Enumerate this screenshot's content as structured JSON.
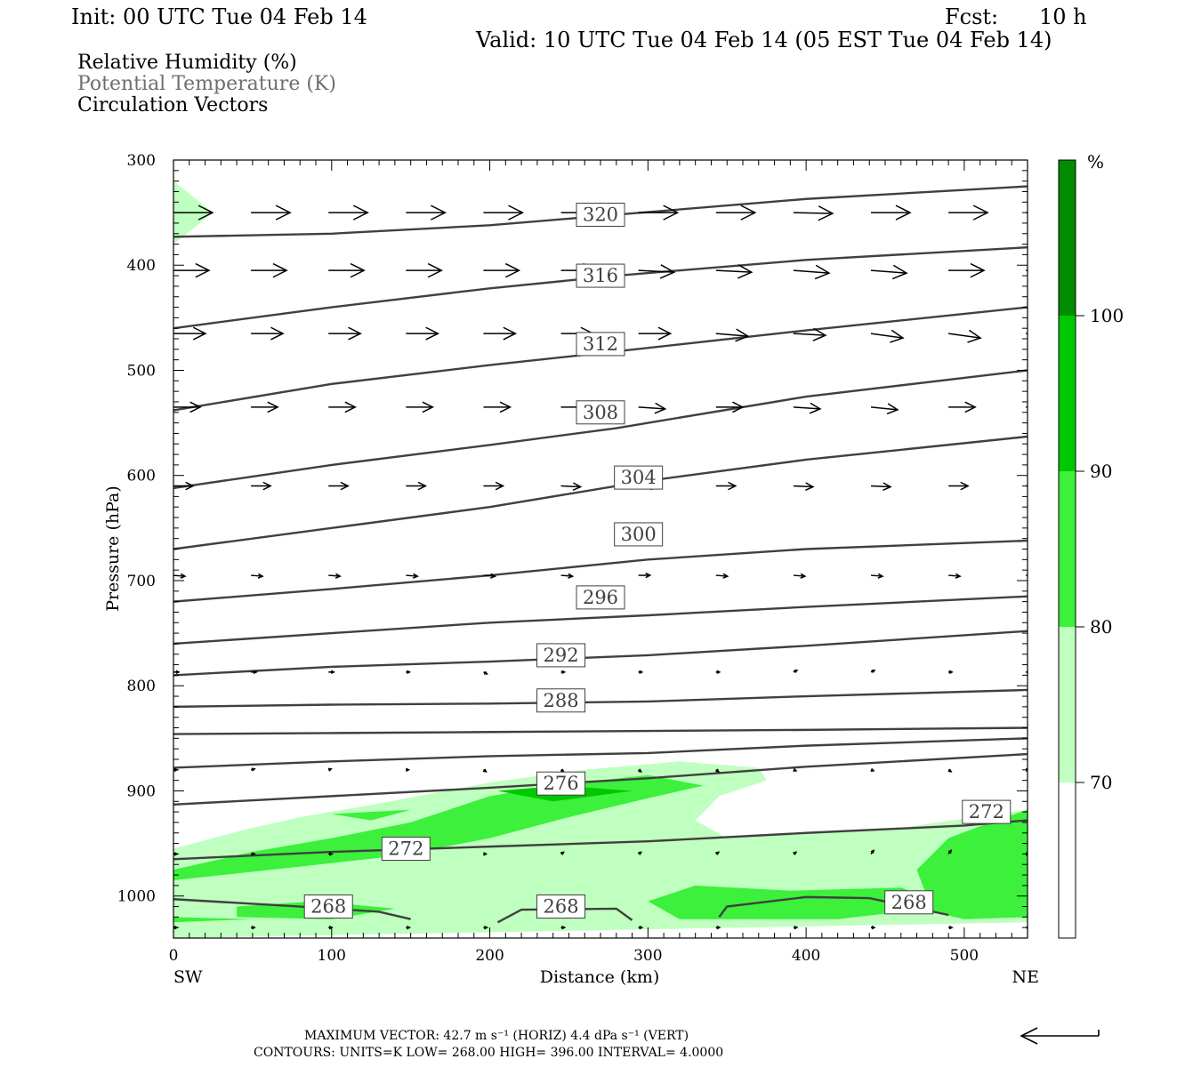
{
  "header": {
    "init": "Init: 00 UTC Tue 04 Feb 14",
    "fcst_label": "Fcst:",
    "fcst_value": "10 h",
    "valid": "Valid: 10 UTC Tue 04 Feb 14 (05 EST Tue 04 Feb 14)"
  },
  "legend": {
    "rh": "Relative Humidity (%)",
    "theta": "Potential Temperature (K)",
    "vectors": "Circulation Vectors"
  },
  "footer": {
    "max_vector": "MAXIMUM VECTOR:  42.7 m s⁻¹ (HORIZ)          4.4 dPa s⁻¹ (VERT)",
    "contours": "CONTOURS:  UNITS=K  LOW=   268.00        HIGH=   396.00        INTERVAL=     4.0000"
  },
  "colors": {
    "rh_70_80": "#bfffbf",
    "rh_80_90": "#3cf03c",
    "rh_90_100": "#00c800",
    "rh_100": "#008c00",
    "contour": "#404040"
  },
  "chart_data": {
    "type": "cross-section",
    "xlabel": "Distance (km)",
    "ylabel": "Pressure (hPa)",
    "xlim": [
      0,
      540
    ],
    "ylim": [
      1040,
      300
    ],
    "x_ticks": [
      "0",
      "100",
      "200",
      "300",
      "400",
      "500"
    ],
    "y_ticks": [
      "300",
      "400",
      "500",
      "600",
      "700",
      "800",
      "900",
      "1000"
    ],
    "x_ends": [
      "SW",
      "NE"
    ],
    "colorbar": {
      "unit": "%",
      "levels": [
        "100",
        "90",
        "80",
        "70"
      ],
      "colors": [
        "#008c00",
        "#00c800",
        "#3cf03c",
        "#bfffbf",
        "#ffffff"
      ]
    },
    "contours": [
      {
        "label": "320",
        "points": [
          [
            0,
            373
          ],
          [
            100,
            370
          ],
          [
            200,
            362
          ],
          [
            280,
            352
          ],
          [
            400,
            337
          ],
          [
            540,
            325
          ]
        ]
      },
      {
        "label": "316",
        "points": [
          [
            0,
            460
          ],
          [
            100,
            440
          ],
          [
            200,
            422
          ],
          [
            280,
            410
          ],
          [
            400,
            395
          ],
          [
            540,
            383
          ]
        ]
      },
      {
        "label": "312",
        "points": [
          [
            0,
            538
          ],
          [
            100,
            513
          ],
          [
            200,
            495
          ],
          [
            280,
            482
          ],
          [
            400,
            462
          ],
          [
            540,
            440
          ]
        ]
      },
      {
        "label": "308",
        "points": [
          [
            0,
            612
          ],
          [
            100,
            590
          ],
          [
            200,
            571
          ],
          [
            280,
            555
          ],
          [
            400,
            525
          ],
          [
            540,
            500
          ]
        ]
      },
      {
        "label": "304",
        "points": [
          [
            0,
            670
          ],
          [
            100,
            650
          ],
          [
            200,
            630
          ],
          [
            300,
            605
          ],
          [
            400,
            585
          ],
          [
            540,
            563
          ]
        ]
      },
      {
        "label": "300",
        "points": [
          [
            0,
            720
          ],
          [
            100,
            708
          ],
          [
            200,
            695
          ],
          [
            300,
            680
          ],
          [
            400,
            670
          ],
          [
            540,
            662
          ]
        ]
      },
      {
        "label": "296",
        "points": [
          [
            0,
            760
          ],
          [
            100,
            750
          ],
          [
            200,
            740
          ],
          [
            300,
            733
          ],
          [
            400,
            725
          ],
          [
            540,
            715
          ]
        ]
      },
      {
        "label": "292",
        "points": [
          [
            0,
            790
          ],
          [
            100,
            782
          ],
          [
            200,
            777
          ],
          [
            300,
            771
          ],
          [
            400,
            762
          ],
          [
            540,
            748
          ]
        ]
      },
      {
        "label": "288",
        "points": [
          [
            0,
            820
          ],
          [
            100,
            818
          ],
          [
            200,
            817
          ],
          [
            300,
            815
          ],
          [
            400,
            810
          ],
          [
            540,
            804
          ]
        ]
      },
      {
        "label": "",
        "points": [
          [
            0,
            846
          ],
          [
            100,
            845
          ],
          [
            200,
            844
          ],
          [
            300,
            843
          ],
          [
            400,
            842
          ],
          [
            540,
            840
          ]
        ]
      },
      {
        "label": "",
        "points": [
          [
            0,
            878
          ],
          [
            100,
            872
          ],
          [
            200,
            867
          ],
          [
            300,
            864
          ],
          [
            400,
            857
          ],
          [
            540,
            850
          ]
        ]
      },
      {
        "label": "276",
        "points": [
          [
            0,
            913
          ],
          [
            100,
            905
          ],
          [
            200,
            897
          ],
          [
            300,
            888
          ],
          [
            400,
            877
          ],
          [
            540,
            865
          ]
        ]
      },
      {
        "label": "272",
        "points": [
          [
            0,
            965
          ],
          [
            100,
            958
          ],
          [
            200,
            953
          ],
          [
            300,
            948
          ],
          [
            400,
            940
          ],
          [
            500,
            933
          ],
          [
            540,
            928
          ]
        ]
      },
      {
        "label": "268",
        "points": [
          [
            0,
            1003
          ],
          [
            80,
            1010
          ],
          [
            130,
            1015
          ],
          [
            150,
            1022
          ]
        ]
      },
      {
        "label": "268",
        "points": [
          [
            205,
            1025
          ],
          [
            220,
            1013
          ],
          [
            280,
            1012
          ],
          [
            290,
            1023
          ]
        ]
      },
      {
        "label": "268",
        "points": [
          [
            345,
            1020
          ],
          [
            350,
            1010
          ],
          [
            400,
            1001
          ],
          [
            440,
            1002
          ],
          [
            490,
            1018
          ]
        ]
      }
    ],
    "contour_labels": [
      {
        "text": "320",
        "x": 270,
        "y": 352
      },
      {
        "text": "316",
        "x": 270,
        "y": 410
      },
      {
        "text": "312",
        "x": 270,
        "y": 475
      },
      {
        "text": "308",
        "x": 270,
        "y": 540
      },
      {
        "text": "304",
        "x": 294,
        "y": 602
      },
      {
        "text": "300",
        "x": 294,
        "y": 656
      },
      {
        "text": "296",
        "x": 270,
        "y": 716
      },
      {
        "text": "292",
        "x": 245,
        "y": 771
      },
      {
        "text": "288",
        "x": 245,
        "y": 814
      },
      {
        "text": "276",
        "x": 245,
        "y": 893
      },
      {
        "text": "272",
        "x": 147,
        "y": 955
      },
      {
        "text": "272",
        "x": 514,
        "y": 920
      },
      {
        "text": "268",
        "x": 98,
        "y": 1010
      },
      {
        "text": "268",
        "x": 245,
        "y": 1010
      },
      {
        "text": "268",
        "x": 465,
        "y": 1006
      }
    ],
    "vector_rows": [
      {
        "p": 350,
        "x": [
          0,
          49,
          98,
          147,
          196,
          245,
          294,
          343,
          392,
          441,
          490,
          539
        ],
        "dx": [
          44,
          44,
          44,
          44,
          44,
          44,
          44,
          44,
          44,
          44,
          44,
          44
        ],
        "dp": [
          0,
          0,
          0,
          0,
          0,
          0,
          0,
          0,
          1,
          0,
          0,
          0
        ]
      },
      {
        "p": 405,
        "x": [
          0,
          49,
          98,
          147,
          196,
          245,
          294,
          343,
          392,
          441,
          490,
          539
        ],
        "dx": [
          40,
          40,
          40,
          40,
          40,
          40,
          40,
          40,
          40,
          40,
          40,
          40
        ],
        "dp": [
          0,
          0,
          0,
          0,
          0,
          0,
          2,
          2,
          3,
          3,
          0,
          2
        ]
      },
      {
        "p": 465,
        "x": [
          0,
          49,
          98,
          147,
          196,
          245,
          294,
          343,
          392,
          441,
          490,
          539
        ],
        "dx": [
          36,
          36,
          36,
          36,
          36,
          36,
          36,
          36,
          36,
          36,
          36,
          36
        ],
        "dp": [
          0,
          0,
          0,
          0,
          0,
          0,
          0,
          3,
          2,
          5,
          5,
          0
        ]
      },
      {
        "p": 535,
        "x": [
          0,
          49,
          98,
          147,
          196,
          245,
          294,
          343,
          392,
          441,
          490,
          539
        ],
        "dx": [
          30,
          30,
          30,
          30,
          30,
          30,
          30,
          30,
          30,
          30,
          30,
          30
        ],
        "dp": [
          0,
          0,
          0,
          0,
          0,
          0,
          2,
          0,
          2,
          3,
          0,
          0
        ]
      },
      {
        "p": 610,
        "x": [
          0,
          49,
          98,
          147,
          196,
          245,
          294,
          343,
          392,
          441,
          490,
          539
        ],
        "dx": [
          22,
          22,
          22,
          22,
          22,
          22,
          22,
          22,
          22,
          22,
          22,
          22
        ],
        "dp": [
          0,
          0,
          0,
          0,
          0,
          1,
          0,
          0,
          1,
          1,
          0,
          0
        ]
      },
      {
        "p": 695,
        "x": [
          0,
          49,
          98,
          147,
          196,
          245,
          294,
          343,
          392,
          441,
          490,
          539
        ],
        "dx": [
          13,
          13,
          13,
          13,
          13,
          13,
          13,
          13,
          13,
          13,
          13,
          13
        ],
        "dp": [
          1,
          1,
          1,
          1,
          1,
          1,
          0,
          1,
          1,
          1,
          1,
          0
        ]
      },
      {
        "p": 787,
        "x": [
          0,
          49,
          98,
          147,
          196,
          245,
          294,
          343,
          392,
          441,
          490,
          539
        ],
        "dx": [
          6,
          6,
          6,
          4,
          4,
          4,
          4,
          4,
          4,
          4,
          4,
          4
        ],
        "dp": [
          0,
          0,
          0,
          0,
          2,
          0,
          0,
          0,
          -2,
          -2,
          0,
          0
        ]
      },
      {
        "p": 880,
        "x": [
          0,
          49,
          98,
          147,
          196,
          245,
          294,
          343,
          392,
          441,
          490,
          539
        ],
        "dx": [
          4,
          4,
          3,
          3,
          3,
          3,
          3,
          3,
          3,
          3,
          3,
          3
        ],
        "dp": [
          0,
          -1,
          -1,
          0,
          2,
          2,
          2,
          2,
          1,
          1,
          2,
          0
        ]
      },
      {
        "p": 960,
        "x": [
          0,
          49,
          98,
          147,
          196,
          245,
          294,
          343,
          392,
          441,
          490,
          539
        ],
        "dx": [
          4,
          4,
          4,
          4,
          3,
          3,
          3,
          3,
          3,
          3,
          3,
          3
        ],
        "dp": [
          0,
          0,
          0,
          0,
          0,
          -2,
          -2,
          -2,
          -2,
          -4,
          -4,
          0
        ]
      },
      {
        "p": 1030,
        "x": [
          0,
          49,
          98,
          147,
          196,
          245,
          294,
          343,
          392,
          441,
          490,
          539
        ],
        "dx": [
          4,
          4,
          4,
          4,
          4,
          4,
          4,
          4,
          4,
          4,
          4,
          4
        ],
        "dp": [
          0,
          0,
          0,
          0,
          0,
          0,
          0,
          0,
          0,
          0,
          0,
          0
        ]
      }
    ],
    "ref_vector": {
      "dx": 44
    },
    "rh_fields": [
      {
        "level": "70-80",
        "points": [
          [
            0,
            320
          ],
          [
            25,
            350
          ],
          [
            0,
            380
          ],
          [
            0,
            955
          ],
          [
            45,
            937
          ],
          [
            80,
            925
          ],
          [
            130,
            912
          ],
          [
            200,
            892
          ],
          [
            260,
            880
          ],
          [
            320,
            872
          ],
          [
            370,
            878
          ],
          [
            375,
            890
          ],
          [
            345,
            905
          ],
          [
            330,
            928
          ],
          [
            350,
            945
          ],
          [
            460,
            935
          ],
          [
            540,
            918
          ],
          [
            540,
            1025
          ],
          [
            0,
            1040
          ]
        ]
      },
      {
        "level": "80-90",
        "points": [
          [
            0,
            975
          ],
          [
            50,
            958
          ],
          [
            100,
            945
          ],
          [
            150,
            930
          ],
          [
            200,
            905
          ],
          [
            240,
            895
          ],
          [
            300,
            885
          ],
          [
            335,
            895
          ],
          [
            300,
            907
          ],
          [
            250,
            925
          ],
          [
            200,
            945
          ],
          [
            140,
            962
          ],
          [
            80,
            972
          ],
          [
            0,
            985
          ]
        ]
      },
      {
        "level": "80-90",
        "points": [
          [
            100,
            922
          ],
          [
            150,
            918
          ],
          [
            125,
            928
          ]
        ]
      },
      {
        "level": "80-90",
        "points": [
          [
            300,
            1005
          ],
          [
            330,
            990
          ],
          [
            390,
            995
          ],
          [
            460,
            992
          ],
          [
            480,
            1003
          ],
          [
            460,
            1015
          ],
          [
            420,
            1022
          ],
          [
            320,
            1022
          ]
        ]
      },
      {
        "level": "80-90",
        "points": [
          [
            470,
            975
          ],
          [
            490,
            945
          ],
          [
            520,
            928
          ],
          [
            540,
            918
          ],
          [
            540,
            1020
          ],
          [
            500,
            1022
          ],
          [
            480,
            1015
          ]
        ]
      },
      {
        "level": "80-90",
        "points": [
          [
            40,
            1010
          ],
          [
            90,
            1005
          ],
          [
            140,
            1012
          ],
          [
            100,
            1022
          ],
          [
            40,
            1020
          ]
        ]
      },
      {
        "level": "80-90",
        "points": [
          [
            0,
            1020
          ],
          [
            50,
            1022
          ],
          [
            0,
            1025
          ]
        ]
      },
      {
        "level": "90-100",
        "points": [
          [
            205,
            900
          ],
          [
            245,
            895
          ],
          [
            290,
            900
          ],
          [
            240,
            910
          ]
        ]
      }
    ]
  }
}
